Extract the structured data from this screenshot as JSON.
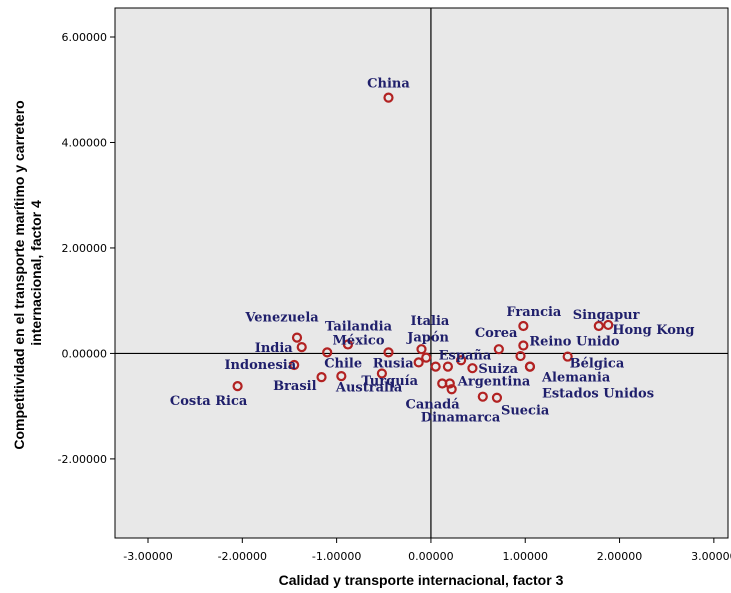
{
  "chart_data": {
    "type": "scatter",
    "title": "",
    "xlabel": "Calidad y transporte internacional, factor 3",
    "ylabel_lines": [
      "Competitividad en el transporte marítimo y carretero",
      "internacional, factor 4"
    ],
    "xlim": [
      -3.35,
      3.15
    ],
    "ylim": [
      -3.5,
      6.55
    ],
    "x_ticks": [
      -3,
      -2,
      -1,
      0,
      1,
      2,
      3
    ],
    "x_tick_labels": [
      "-3.00000",
      "-2.00000",
      "-1.00000",
      "0.00000",
      "1.00000",
      "2.00000",
      "3.00000"
    ],
    "y_ticks": [
      -2,
      0,
      2,
      4,
      6
    ],
    "y_tick_labels": [
      "-2.00000",
      "0.00000",
      "2.00000",
      "4.00000",
      "6.00000"
    ],
    "reference_lines": {
      "x": 0,
      "y": 0
    },
    "grid": false,
    "colors": {
      "plot_bg": "#e8e8e8",
      "marker": "#b22222",
      "label": "#1f1f6b",
      "axis": "#000000"
    },
    "points": [
      {
        "x": -0.45,
        "y": 4.85,
        "label": "China",
        "anchor": "middle",
        "dx": 0,
        "dy": -10
      },
      {
        "x": -1.42,
        "y": 0.3,
        "label": "Venezuela",
        "anchor": "middle",
        "dx": -15,
        "dy": -16
      },
      {
        "x": -1.37,
        "y": 0.12,
        "label": "India",
        "anchor": "end",
        "dx": -9,
        "dy": 5
      },
      {
        "x": -1.45,
        "y": -0.22,
        "label": "Indonesia",
        "anchor": "end",
        "dx": 2,
        "dy": 4
      },
      {
        "x": -2.05,
        "y": -0.62,
        "label": "Costa Rica",
        "anchor": "middle",
        "dx": -29,
        "dy": 19
      },
      {
        "x": -1.1,
        "y": 0.02,
        "label": "Chile",
        "anchor": "start",
        "dx": -3,
        "dy": 15
      },
      {
        "x": -1.16,
        "y": -0.45,
        "label": "Brasil",
        "anchor": "end",
        "dx": -5,
        "dy": 13
      },
      {
        "x": -0.88,
        "y": 0.17,
        "label": "Tailandia",
        "anchor": "start",
        "dx": -23,
        "dy": -14
      },
      {
        "x": -0.95,
        "y": -0.43,
        "label": "Turquía",
        "anchor": "start",
        "dx": 20,
        "dy": 9
      },
      {
        "x": -0.52,
        "y": -0.38,
        "label": "Australia",
        "anchor": "start",
        "dx": -46,
        "dy": 18
      },
      {
        "x": -0.45,
        "y": 0.02,
        "label": "México",
        "anchor": "end",
        "dx": -4,
        "dy": -8
      },
      {
        "x": -0.13,
        "y": -0.17,
        "label": "Rusia",
        "anchor": "end",
        "dx": -5,
        "dy": 5
      },
      {
        "x": -0.1,
        "y": 0.08,
        "label": "Italia",
        "anchor": "start",
        "dx": -11,
        "dy": -24
      },
      {
        "x": -0.05,
        "y": -0.08,
        "label": "Japón",
        "anchor": "start",
        "dx": -19,
        "dy": -16
      },
      {
        "x": 0.05,
        "y": -0.25,
        "label": "España",
        "anchor": "start",
        "dx": 3,
        "dy": -7
      },
      {
        "x": 0.18,
        "y": -0.25,
        "label": "",
        "anchor": "start",
        "dx": 0,
        "dy": 0
      },
      {
        "x": 0.32,
        "y": -0.13,
        "label": "",
        "anchor": "start",
        "dx": 0,
        "dy": 0
      },
      {
        "x": 0.44,
        "y": -0.28,
        "label": "Suiza",
        "anchor": "start",
        "dx": 6,
        "dy": 5
      },
      {
        "x": 0.12,
        "y": -0.57,
        "label": "",
        "anchor": "start",
        "dx": 0,
        "dy": 0
      },
      {
        "x": 0.2,
        "y": -0.57,
        "label": "Argentina",
        "anchor": "start",
        "dx": 8,
        "dy": 2
      },
      {
        "x": 0.22,
        "y": -0.68,
        "label": "Canadá",
        "anchor": "end",
        "dx": 8,
        "dy": 19
      },
      {
        "x": 0.55,
        "y": -0.82,
        "label": "Dinamarca",
        "anchor": "start",
        "dx": -62,
        "dy": 25
      },
      {
        "x": 0.7,
        "y": -0.84,
        "label": "Suecia",
        "anchor": "start",
        "dx": 4,
        "dy": 17
      },
      {
        "x": 0.72,
        "y": 0.08,
        "label": "Corea",
        "anchor": "start",
        "dx": -24,
        "dy": -12
      },
      {
        "x": 0.95,
        "y": -0.05,
        "label": "",
        "anchor": "start",
        "dx": 0,
        "dy": 0
      },
      {
        "x": 0.98,
        "y": 0.15,
        "label": "Reino Unido",
        "anchor": "start",
        "dx": 6,
        "dy": 0
      },
      {
        "x": 1.05,
        "y": -0.25,
        "label": "Alemania",
        "anchor": "start",
        "dx": 12,
        "dy": 15
      },
      {
        "x": 1.45,
        "y": -0.06,
        "label": "Bélgica",
        "anchor": "start",
        "dx": 2,
        "dy": 11
      },
      {
        "x": 1.05,
        "y": -0.25,
        "label": "Estados Unidos",
        "anchor": "start",
        "dx": 12,
        "dy": 31
      },
      {
        "x": 0.98,
        "y": 0.52,
        "label": "Francia",
        "anchor": "start",
        "dx": -17,
        "dy": -10
      },
      {
        "x": 1.78,
        "y": 0.52,
        "label": "Singapur",
        "anchor": "start",
        "dx": -26,
        "dy": -7
      },
      {
        "x": 1.88,
        "y": 0.54,
        "label": "Hong Kong",
        "anchor": "start",
        "dx": 4,
        "dy": 9
      }
    ]
  }
}
